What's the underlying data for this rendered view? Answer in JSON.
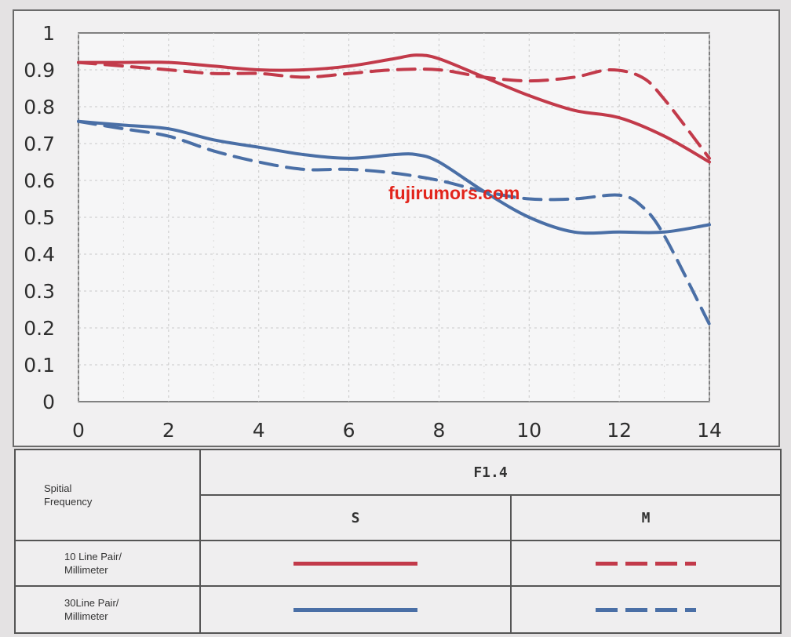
{
  "watermark": "fujirumors.com",
  "colors": {
    "red": "#c23a4a",
    "blue": "#4a6fa6",
    "grid": "#c8c8c8"
  },
  "chart_data": {
    "type": "line",
    "title": "",
    "xlabel": "",
    "ylabel": "",
    "xlim": [
      0,
      14
    ],
    "ylim": [
      0,
      1
    ],
    "grid": true,
    "x_ticks": [
      "0",
      "2",
      "4",
      "6",
      "8",
      "10",
      "12",
      "14"
    ],
    "y_ticks": [
      "0",
      "0.1",
      "0.2",
      "0.3",
      "0.4",
      "0.5",
      "0.6",
      "0.7",
      "0.8",
      "0.9",
      "1"
    ],
    "series": [
      {
        "name": "10 Line Pair/ Millimeter S",
        "color": "red",
        "dash": false,
        "x": [
          0,
          1,
          2,
          3,
          4,
          5,
          6,
          7,
          7.5,
          8,
          9,
          10,
          11,
          12,
          13,
          14
        ],
        "y": [
          0.92,
          0.92,
          0.92,
          0.91,
          0.9,
          0.9,
          0.91,
          0.93,
          0.94,
          0.93,
          0.88,
          0.83,
          0.79,
          0.77,
          0.72,
          0.65
        ]
      },
      {
        "name": "10 Line Pair/ Millimeter M",
        "color": "red",
        "dash": true,
        "x": [
          0,
          1,
          2,
          3,
          4,
          5,
          6,
          7,
          8,
          9,
          10,
          11,
          11.8,
          12.5,
          13,
          14
        ],
        "y": [
          0.92,
          0.91,
          0.9,
          0.89,
          0.89,
          0.88,
          0.89,
          0.9,
          0.9,
          0.88,
          0.87,
          0.88,
          0.9,
          0.88,
          0.82,
          0.66
        ]
      },
      {
        "name": "30Line Pair/ Millimeter S",
        "color": "blue",
        "dash": false,
        "x": [
          0,
          1,
          2,
          3,
          4,
          5,
          6,
          7,
          7.5,
          8,
          9,
          10,
          11,
          12,
          13,
          14
        ],
        "y": [
          0.76,
          0.75,
          0.74,
          0.71,
          0.69,
          0.67,
          0.66,
          0.67,
          0.67,
          0.65,
          0.57,
          0.5,
          0.46,
          0.46,
          0.46,
          0.48
        ]
      },
      {
        "name": "30Line Pair/ Millimeter M",
        "color": "blue",
        "dash": true,
        "x": [
          0,
          1,
          2,
          3,
          4,
          5,
          6,
          7,
          8,
          9,
          10,
          11,
          12,
          12.5,
          13,
          14
        ],
        "y": [
          0.76,
          0.74,
          0.72,
          0.68,
          0.65,
          0.63,
          0.63,
          0.62,
          0.6,
          0.57,
          0.55,
          0.55,
          0.56,
          0.53,
          0.45,
          0.21
        ]
      }
    ]
  },
  "legend": {
    "spatial_frequency": [
      "Spitial",
      "Frequency"
    ],
    "aperture": "F1.4",
    "col_s": "S",
    "col_m": "M",
    "row_10": [
      "10 Line Pair/",
      "Millimeter"
    ],
    "row_30": [
      "30Line Pair/",
      "Millimeter"
    ]
  }
}
